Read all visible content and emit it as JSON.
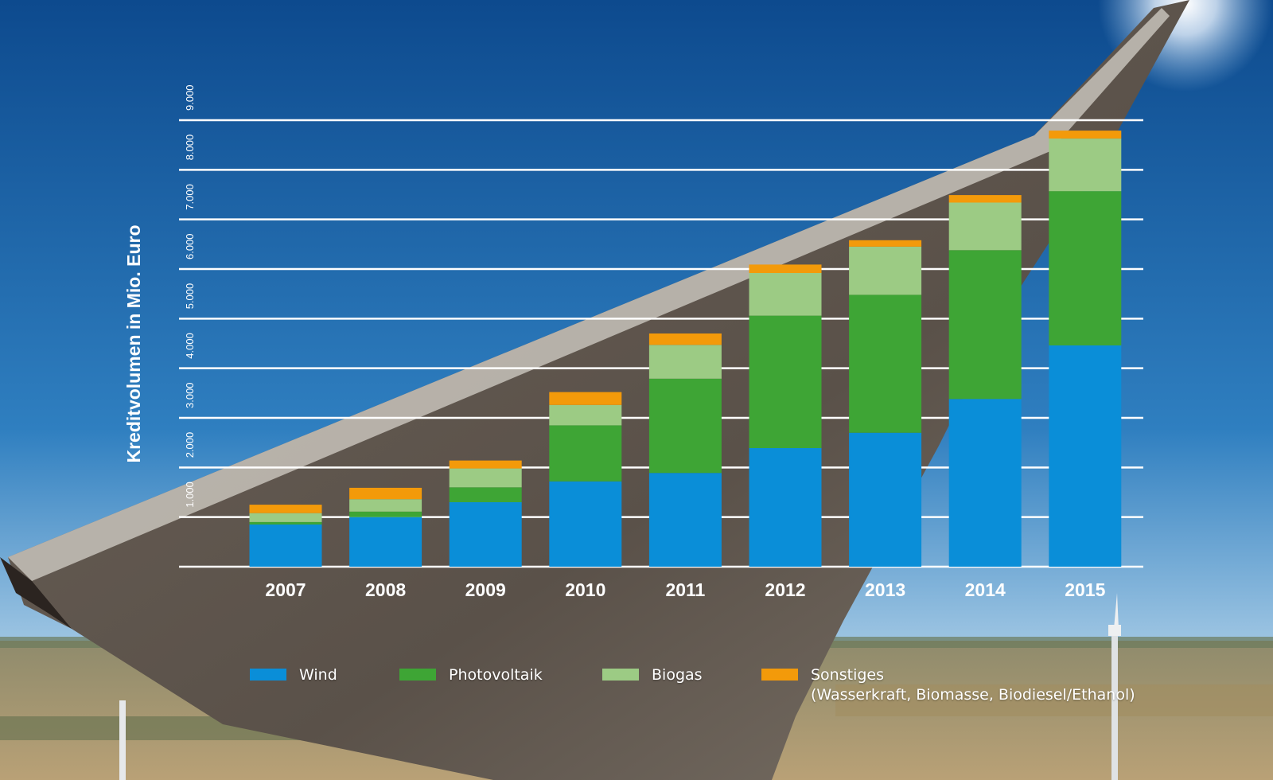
{
  "colors": {
    "wind": "#0a8ed8",
    "photovoltaik": "#3ea535",
    "biogas": "#9ccb84",
    "sonstiges": "#f39a0a",
    "grid": "#ffffff",
    "text": "#ffffff"
  },
  "legend": [
    {
      "key": "wind",
      "label": "Wind",
      "note": ""
    },
    {
      "key": "photovoltaik",
      "label": "Photovoltaik",
      "note": ""
    },
    {
      "key": "biogas",
      "label": "Biogas",
      "note": ""
    },
    {
      "key": "sonstiges",
      "label": "Sonstiges",
      "note": "(Wasserkraft, Biomasse, Biodiesel/Ethanol)"
    }
  ],
  "chart_data": {
    "type": "bar",
    "stacked": true,
    "title": "",
    "xlabel": "",
    "ylabel": "Kreditvolumen in Mio. Euro",
    "ylim": [
      0,
      9000
    ],
    "yticks": [
      1000,
      2000,
      3000,
      4000,
      5000,
      6000,
      7000,
      8000,
      9000
    ],
    "ytick_labels": [
      "1.000",
      "2.000",
      "3.000",
      "4.000",
      "5.000",
      "6.000",
      "7.000",
      "8.000",
      "9.000"
    ],
    "grid": true,
    "legend_position": "bottom",
    "categories": [
      "2007",
      "2008",
      "2009",
      "2010",
      "2011",
      "2012",
      "2013",
      "2014",
      "2015"
    ],
    "series": [
      {
        "name": "Wind",
        "key": "wind",
        "values": [
          850,
          1000,
          1300,
          1720,
          1890,
          2390,
          2700,
          3380,
          4460
        ]
      },
      {
        "name": "Photovoltaik",
        "key": "photovoltaik",
        "values": [
          50,
          110,
          300,
          1130,
          1900,
          2670,
          2780,
          3000,
          3110
        ]
      },
      {
        "name": "Biogas",
        "key": "biogas",
        "values": [
          180,
          250,
          380,
          410,
          680,
          860,
          970,
          960,
          1060
        ]
      },
      {
        "name": "Sonstiges (Wasserkraft, Biomasse, Biodiesel/Ethanol)",
        "key": "sonstiges",
        "values": [
          170,
          230,
          160,
          260,
          230,
          170,
          130,
          150,
          160
        ]
      }
    ]
  }
}
